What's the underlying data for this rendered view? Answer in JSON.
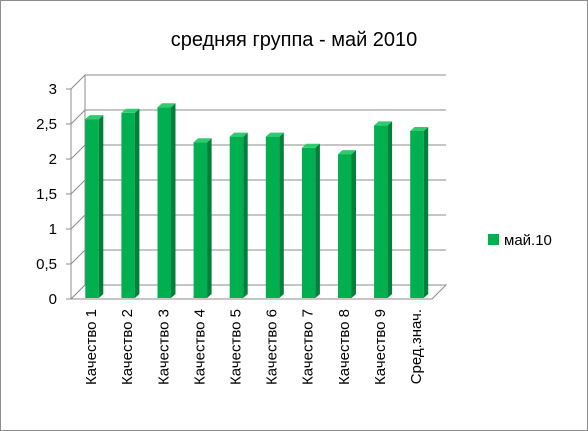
{
  "chart_data": {
    "type": "bar",
    "title": "средняя группа - май 2010",
    "xlabel": "",
    "ylabel": "",
    "categories": [
      "Качество 1",
      "Качество 2",
      "Качество 3",
      "Качество 4",
      "Качество 5",
      "Качество 6",
      "Качество 7",
      "Качество 8",
      "Качество 9",
      "Сред.знач."
    ],
    "series": [
      {
        "name": "май.10",
        "values": [
          2.57,
          2.66,
          2.74,
          2.24,
          2.32,
          2.32,
          2.16,
          2.07,
          2.48,
          2.4
        ],
        "color": "#00b050"
      }
    ],
    "ylim": [
      0,
      3
    ],
    "yticks": [
      "0",
      "0,5",
      "1",
      "1,5",
      "2",
      "2,5",
      "3"
    ],
    "grid": true,
    "legend_position": "right",
    "style": "3d-clustered-column"
  }
}
